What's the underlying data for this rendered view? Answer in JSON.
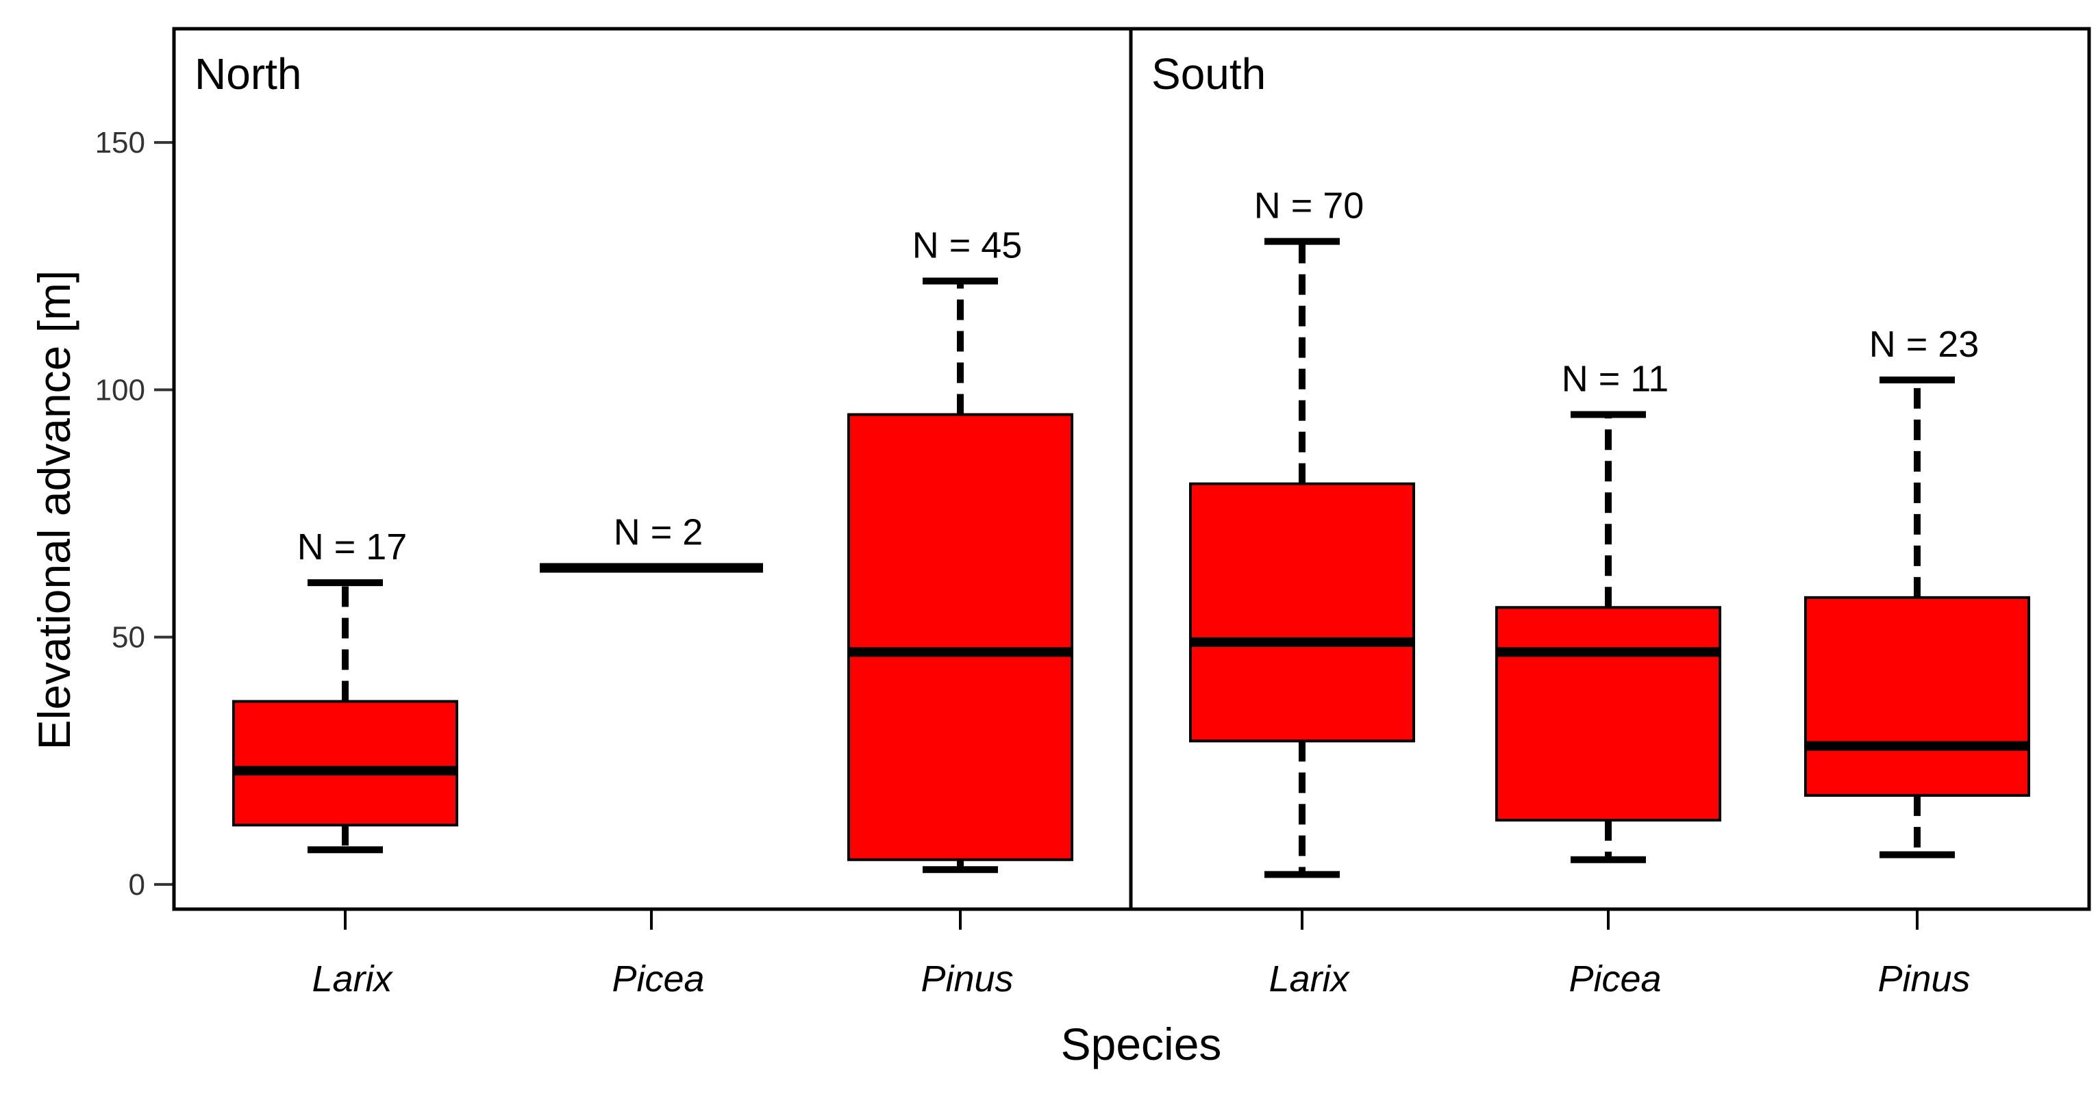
{
  "chart_data": {
    "type": "boxplot",
    "xlabel": "Species",
    "ylabel": "Elevational advance [m]",
    "ylim": [
      -5,
      173
    ],
    "yticks": [
      0,
      50,
      100,
      150
    ],
    "box_color": "#ff0000",
    "panels": [
      {
        "name": "North",
        "boxes": [
          {
            "category": "Larix",
            "n_label": "N = 17",
            "min": 7,
            "q1": 12,
            "median": 23,
            "q3": 37,
            "max": 61
          },
          {
            "category": "Picea",
            "n_label": "N = 2",
            "min": 64,
            "q1": 64,
            "median": 64,
            "q3": 64,
            "max": 64
          },
          {
            "category": "Pinus",
            "n_label": "N = 45",
            "min": 3,
            "q1": 5,
            "median": 47,
            "q3": 95,
            "max": 122
          }
        ]
      },
      {
        "name": "South",
        "boxes": [
          {
            "category": "Larix",
            "n_label": "N = 70",
            "min": 2,
            "q1": 29,
            "median": 49,
            "q3": 81,
            "max": 130
          },
          {
            "category": "Picea",
            "n_label": "N = 11",
            "min": 5,
            "q1": 13,
            "median": 47,
            "q3": 56,
            "max": 95
          },
          {
            "category": "Pinus",
            "n_label": "N = 23",
            "min": 6,
            "q1": 18,
            "median": 28,
            "q3": 58,
            "max": 102
          }
        ]
      }
    ]
  }
}
